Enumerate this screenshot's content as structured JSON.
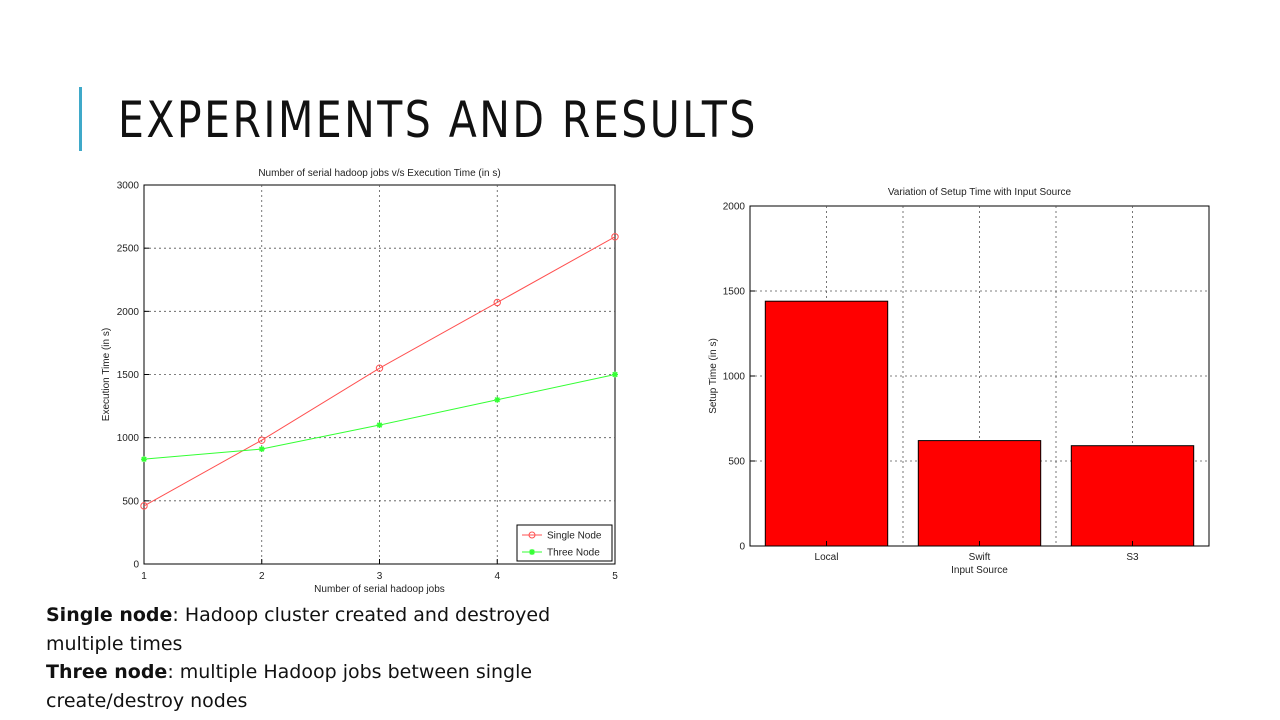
{
  "slide": {
    "title": "EXPERIMENTS AND RESULTS",
    "accent_color": "#3fa9c9",
    "notes": [
      {
        "term": "Single node",
        "text": ": Hadoop cluster created and destroyed multiple times"
      },
      {
        "term": "Three node",
        "text": ": multiple Hadoop jobs between single create/destroy nodes"
      }
    ]
  },
  "chart_data": [
    {
      "type": "line",
      "title": "Number of serial hadoop jobs v/s Execution Time (in s)",
      "xlabel": "Number of serial hadoop jobs",
      "ylabel": "Execution Time (in s)",
      "x": [
        1,
        2,
        3,
        4,
        5
      ],
      "xlim": [
        1,
        5
      ],
      "ylim": [
        0,
        3000
      ],
      "xticks": [
        1,
        2,
        3,
        4,
        5
      ],
      "yticks": [
        0,
        500,
        1000,
        1500,
        2000,
        2500,
        3000
      ],
      "grid": true,
      "legend": "bottom-right",
      "series": [
        {
          "name": "Single Node",
          "values": [
            460,
            980,
            1550,
            2070,
            2590
          ],
          "color": "#ff5050",
          "marker": "circle"
        },
        {
          "name": "Three Node",
          "values": [
            830,
            910,
            1100,
            1300,
            1500
          ],
          "color": "#33ff33",
          "marker": "star"
        }
      ]
    },
    {
      "type": "bar",
      "title": "Variation of Setup Time with Input Source",
      "xlabel": "Input Source",
      "ylabel": "Setup Time (in s)",
      "categories": [
        "Local",
        "Swift",
        "S3"
      ],
      "values": [
        1440,
        620,
        590
      ],
      "ylim": [
        0,
        2000
      ],
      "yticks": [
        0,
        500,
        1000,
        1500,
        2000
      ],
      "grid": true,
      "color": "#ff0000"
    }
  ]
}
